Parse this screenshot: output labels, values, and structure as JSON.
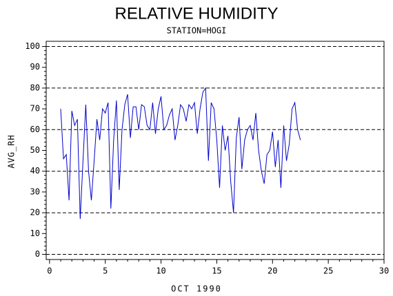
{
  "chart_data": {
    "type": "line",
    "title": "RELATIVE HUMIDITY",
    "subtitle": "STATION=HOGI",
    "x_label": "OCT 1990",
    "y_label": "AVG_RH",
    "x": [
      1.0,
      1.25,
      1.5,
      1.75,
      2.0,
      2.25,
      2.5,
      2.75,
      3.0,
      3.25,
      3.5,
      3.75,
      4.0,
      4.25,
      4.5,
      4.75,
      5.0,
      5.25,
      5.5,
      5.75,
      6.0,
      6.25,
      6.5,
      6.75,
      7.0,
      7.25,
      7.5,
      7.75,
      8.0,
      8.25,
      8.5,
      8.75,
      9.0,
      9.25,
      9.5,
      9.75,
      10.0,
      10.25,
      10.5,
      10.75,
      11.0,
      11.25,
      11.5,
      11.75,
      12.0,
      12.25,
      12.5,
      12.75,
      13.0,
      13.25,
      13.5,
      13.75,
      14.0,
      14.25,
      14.5,
      14.75,
      15.0,
      15.25,
      15.5,
      15.75,
      16.0,
      16.25,
      16.5,
      16.75,
      17.0,
      17.25,
      17.5,
      17.75,
      18.0,
      18.25,
      18.5,
      18.75,
      19.0,
      19.25,
      19.5,
      19.75,
      20.0,
      20.25,
      20.5,
      20.75,
      21.0,
      21.25,
      21.5,
      21.75,
      22.0,
      22.25,
      22.5
    ],
    "series": [
      {
        "name": "AVG_RH",
        "color": "#0000cc",
        "values": [
          70,
          46,
          48,
          26,
          69,
          62,
          65,
          17,
          45,
          72,
          40,
          26,
          45,
          65,
          55,
          70,
          68,
          73,
          22,
          55,
          74,
          31,
          60,
          72,
          77,
          56,
          71,
          71,
          60,
          72,
          71,
          62,
          60,
          73,
          58,
          70,
          76,
          60,
          62,
          67,
          70,
          55,
          62,
          72,
          70,
          64,
          72,
          70,
          73,
          58,
          70,
          78,
          80,
          45,
          73,
          70,
          55,
          32,
          62,
          50,
          57,
          35,
          20,
          56,
          66,
          41,
          55,
          60,
          62,
          55,
          68,
          50,
          40,
          34,
          48,
          50,
          59,
          42,
          55,
          32,
          62,
          45,
          53,
          70,
          73,
          60,
          55
        ]
      }
    ],
    "xlim": [
      -0.3,
      30
    ],
    "ylim": [
      -2.5,
      102.5
    ],
    "xticks": [
      0,
      5,
      10,
      15,
      20,
      25,
      30
    ],
    "yticks": [
      0,
      10,
      20,
      30,
      40,
      50,
      60,
      70,
      80,
      90,
      100
    ],
    "grid_lines": [
      0,
      20,
      40,
      60,
      80,
      100
    ]
  }
}
